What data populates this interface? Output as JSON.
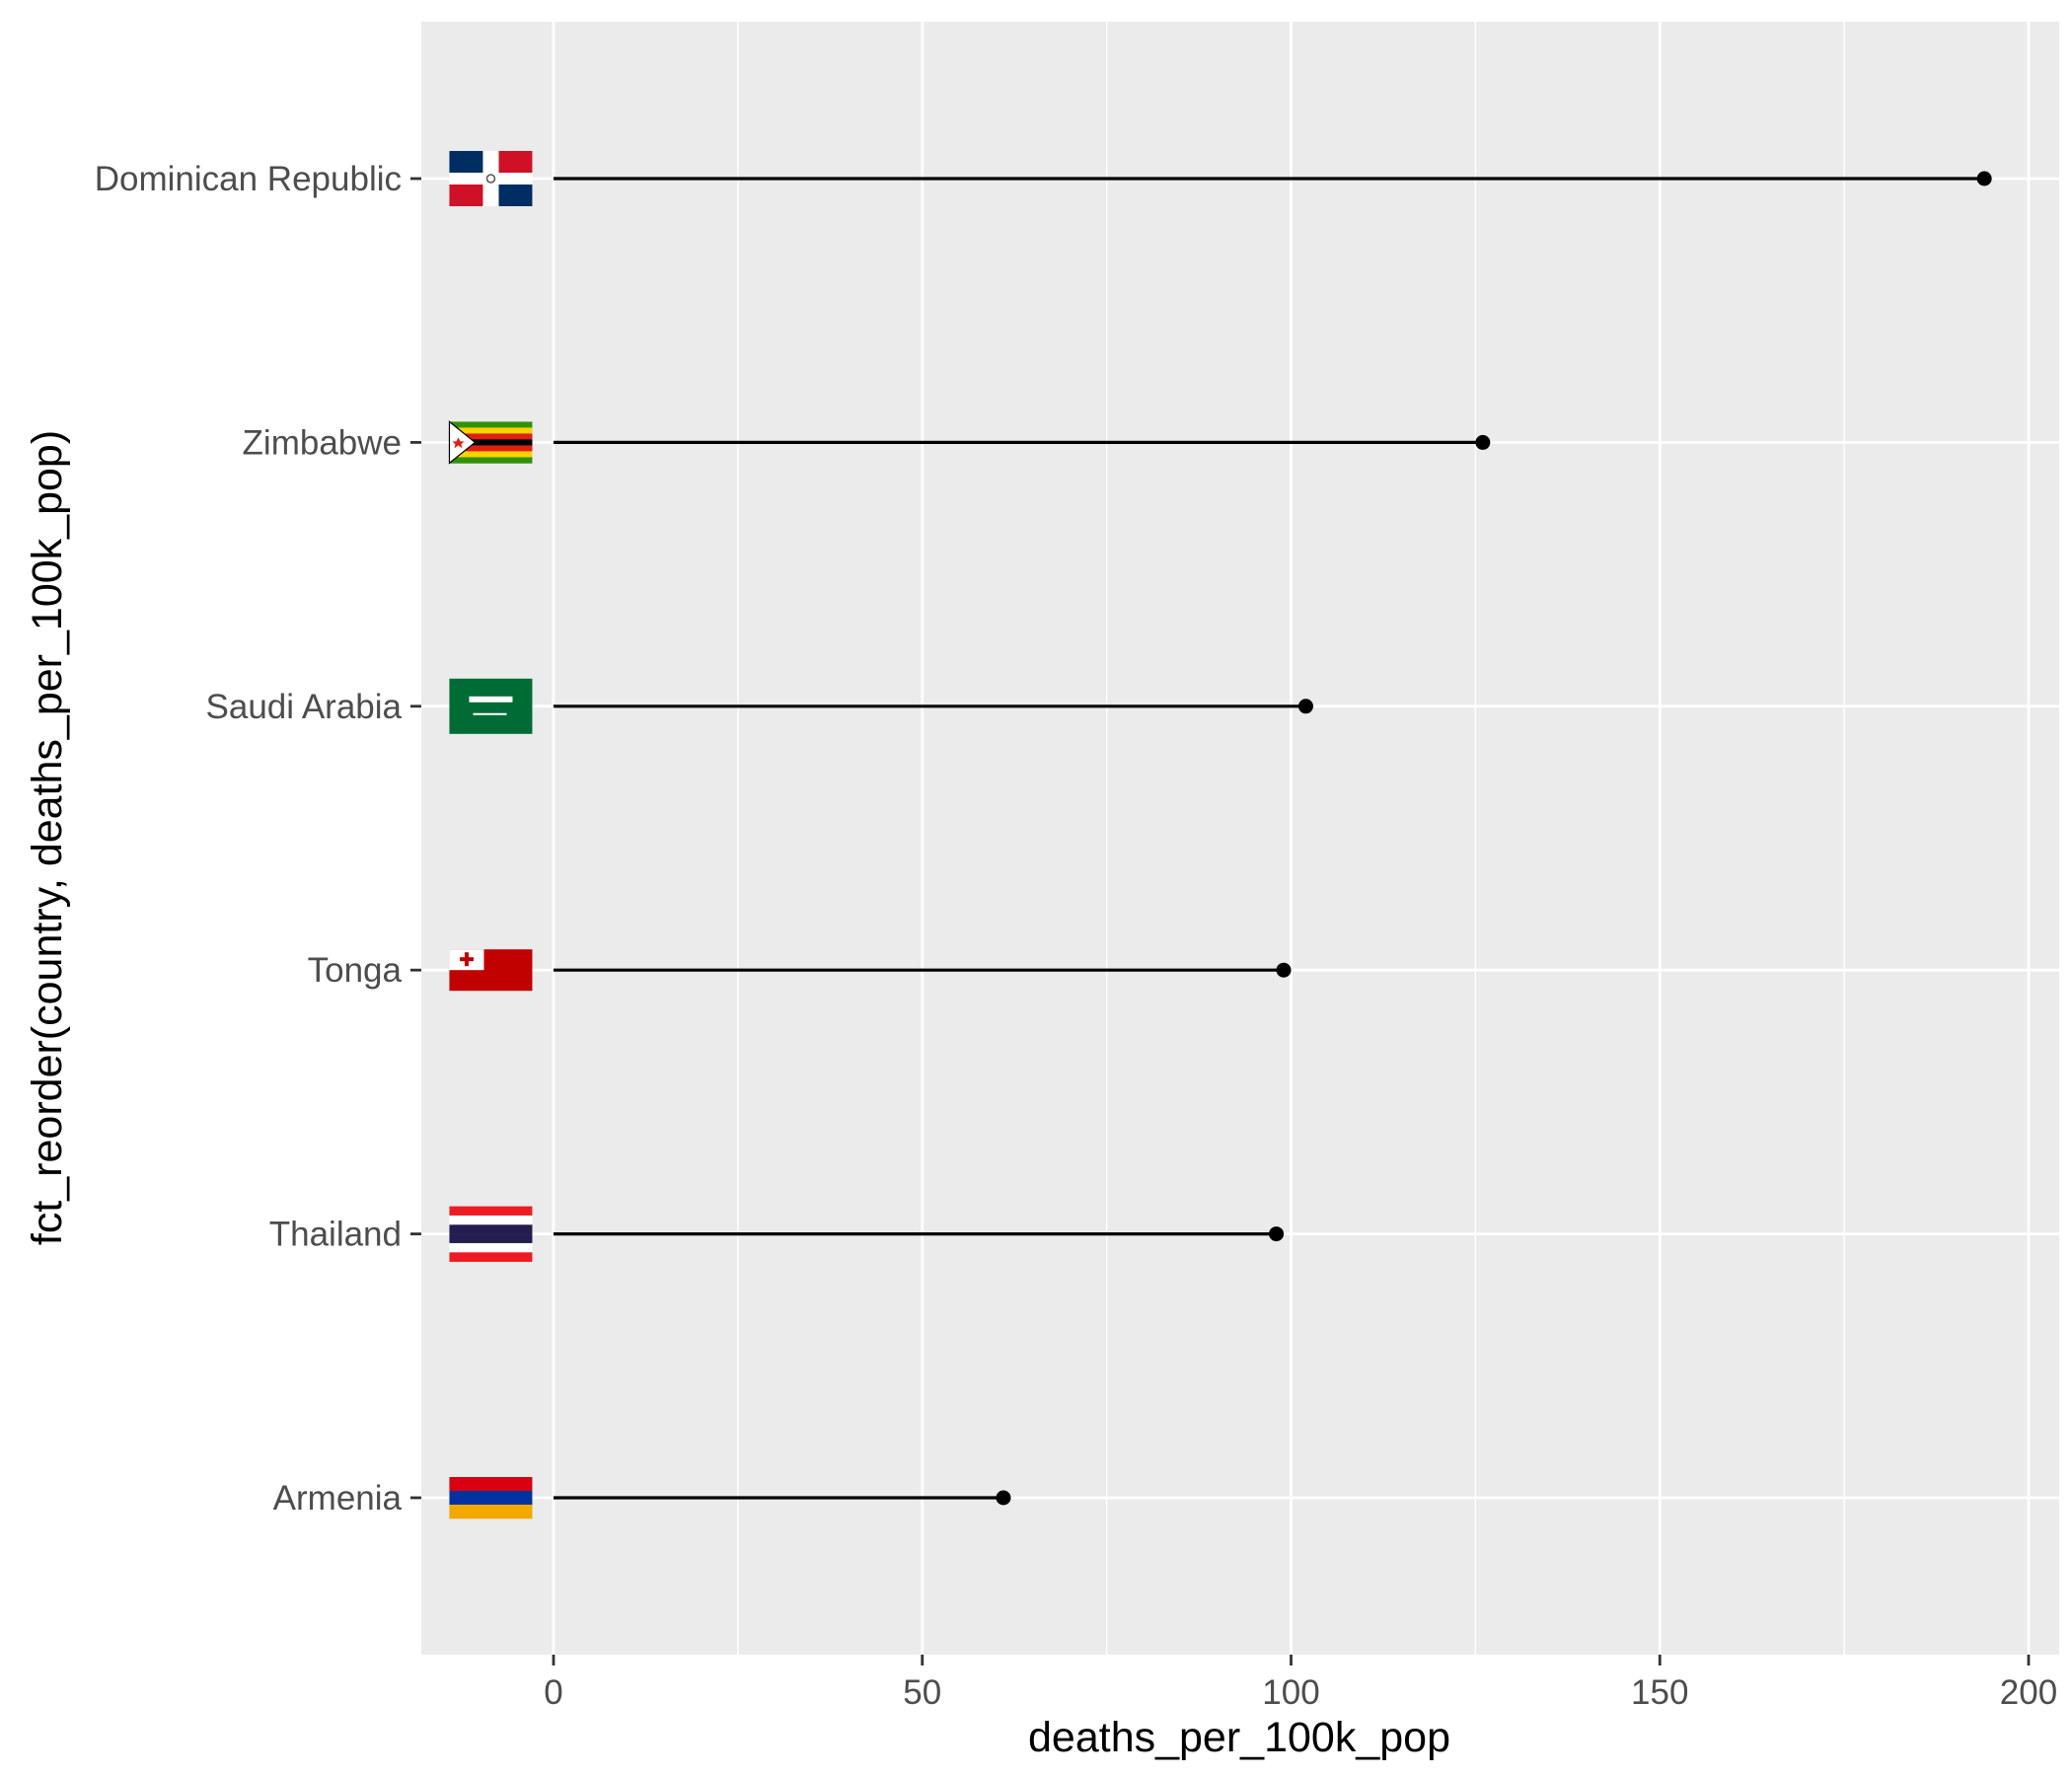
{
  "chart_data": {
    "type": "lollipop",
    "xlabel": "deaths_per_100k_pop",
    "ylabel": "fct_reorder(country, deaths_per_100k_pop)",
    "xlim": [
      -18,
      203
    ],
    "x_ticks": [
      0,
      50,
      100,
      150,
      200
    ],
    "x_tick_labels": [
      "0",
      "50",
      "100",
      "150",
      "200"
    ],
    "grid": true,
    "legend": "none",
    "categories": [
      "Dominican Republic",
      "Zimbabwe",
      "Saudi Arabia",
      "Tonga",
      "Thailand",
      "Armenia"
    ],
    "values": [
      194,
      126,
      102,
      99,
      98,
      61
    ],
    "flags": [
      "dominican-republic-flag",
      "zimbabwe-flag",
      "saudi-arabia-flag",
      "tonga-flag",
      "thailand-flag",
      "armenia-flag"
    ],
    "colors": {
      "panel_background": "#ebebeb",
      "grid_line": "#ffffff",
      "segment": "#000000",
      "point": "#000000",
      "tick_text": "#4d4d4d",
      "axis_title": "#000000"
    }
  }
}
